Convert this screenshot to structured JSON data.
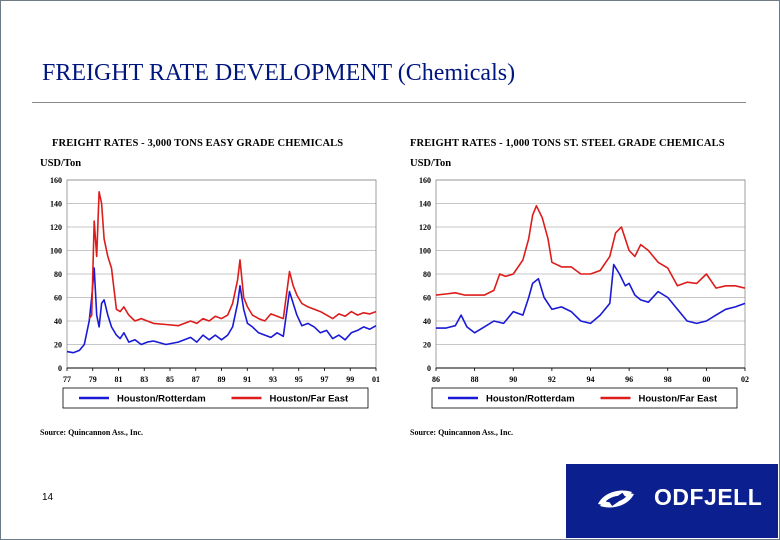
{
  "slide": {
    "title": "FREIGHT RATE DEVELOPMENT (Chemicals)",
    "page_number": "14"
  },
  "logo": {
    "text": "ODFJELL",
    "icon": "odfjell-swirl-icon"
  },
  "colors": {
    "series_blue": "#1a1ad6",
    "series_red": "#dd1c1c",
    "title": "#00167f",
    "logo_bg": "#0c1f8f"
  },
  "chart_data": [
    {
      "type": "line",
      "title": "FREIGHT RATES - 3,000 TONS EASY GRADE CHEMICALS",
      "ylabel": "USD/Ton",
      "ylim": [
        0,
        160
      ],
      "yticks": [
        "0",
        "20",
        "40",
        "60",
        "80",
        "100",
        "120",
        "140",
        "160"
      ],
      "xlim": [
        1977,
        2002
      ],
      "xticks": [
        "77",
        "79",
        "81",
        "83",
        "85",
        "87",
        "89",
        "91",
        "93",
        "95",
        "97",
        "99",
        "01"
      ],
      "grid": true,
      "legend_position": "bottom",
      "source": "Source: Quincannon Ass., Inc.",
      "series": [
        {
          "name": "Houston/Rotterdam",
          "x": [
            1977.0,
            1977.5,
            1978.0,
            1978.4,
            1978.8,
            1979.0,
            1979.2,
            1979.4,
            1979.6,
            1979.8,
            1980.0,
            1980.3,
            1980.6,
            1981.0,
            1981.3,
            1981.6,
            1982.0,
            1982.5,
            1983.0,
            1983.5,
            1984.0,
            1985.0,
            1986.0,
            1987.0,
            1987.5,
            1988.0,
            1988.5,
            1989.0,
            1989.5,
            1990.0,
            1990.4,
            1990.8,
            1991.0,
            1991.3,
            1991.6,
            1992.0,
            1992.5,
            1993.0,
            1993.5,
            1994.0,
            1994.5,
            1995.0,
            1995.3,
            1995.6,
            1996.0,
            1996.5,
            1997.0,
            1997.5,
            1998.0,
            1998.5,
            1999.0,
            1999.5,
            2000.0,
            2000.5,
            2001.0,
            2001.5,
            2002.0
          ],
          "values": [
            14,
            13,
            15,
            20,
            40,
            60,
            85,
            45,
            35,
            55,
            58,
            45,
            35,
            28,
            25,
            30,
            22,
            24,
            20,
            22,
            23,
            20,
            22,
            26,
            22,
            28,
            24,
            28,
            24,
            28,
            35,
            55,
            70,
            50,
            38,
            35,
            30,
            28,
            26,
            30,
            27,
            65,
            55,
            45,
            36,
            38,
            35,
            30,
            32,
            25,
            28,
            24,
            30,
            32,
            35,
            33,
            36
          ]
        },
        {
          "name": "Houston/Far East",
          "x": [
            1978.8,
            1979.0,
            1979.2,
            1979.4,
            1979.6,
            1979.8,
            1980.0,
            1980.3,
            1980.6,
            1981.0,
            1981.3,
            1981.6,
            1982.0,
            1982.5,
            1983.0,
            1983.5,
            1984.0,
            1985.0,
            1986.0,
            1987.0,
            1987.5,
            1988.0,
            1988.5,
            1989.0,
            1989.5,
            1990.0,
            1990.4,
            1990.8,
            1991.0,
            1991.3,
            1991.6,
            1992.0,
            1992.5,
            1993.0,
            1993.5,
            1994.0,
            1994.5,
            1995.0,
            1995.3,
            1995.6,
            1996.0,
            1996.5,
            1997.0,
            1997.5,
            1998.0,
            1998.5,
            1999.0,
            1999.5,
            2000.0,
            2000.5,
            2001.0,
            2001.5,
            2002.0
          ],
          "values": [
            42,
            45,
            125,
            95,
            150,
            140,
            110,
            95,
            85,
            50,
            48,
            52,
            45,
            40,
            42,
            40,
            38,
            37,
            36,
            40,
            38,
            42,
            40,
            44,
            42,
            45,
            55,
            75,
            92,
            60,
            52,
            45,
            42,
            40,
            46,
            44,
            42,
            82,
            70,
            62,
            55,
            52,
            50,
            48,
            45,
            42,
            46,
            44,
            48,
            45,
            47,
            46,
            48
          ]
        }
      ]
    },
    {
      "type": "line",
      "title": "FREIGHT RATES - 1,000 TONS ST. STEEL GRADE CHEMICALS",
      "ylabel": "USD/Ton",
      "ylim": [
        0,
        160
      ],
      "yticks": [
        "0",
        "20",
        "40",
        "60",
        "80",
        "100",
        "120",
        "140",
        "160"
      ],
      "xlim": [
        1986,
        2002
      ],
      "xticks": [
        "86",
        "88",
        "90",
        "92",
        "94",
        "96",
        "98",
        "00",
        "02"
      ],
      "grid": true,
      "legend_position": "bottom",
      "source": "Source: Quincannon Ass., Inc.",
      "series": [
        {
          "name": "Houston/Rotterdam",
          "x": [
            1986.0,
            1986.5,
            1987.0,
            1987.3,
            1987.6,
            1988.0,
            1988.5,
            1989.0,
            1989.5,
            1990.0,
            1990.5,
            1990.8,
            1991.0,
            1991.3,
            1991.6,
            1992.0,
            1992.5,
            1993.0,
            1993.5,
            1994.0,
            1994.5,
            1995.0,
            1995.2,
            1995.5,
            1995.8,
            1996.0,
            1996.3,
            1996.6,
            1997.0,
            1997.5,
            1998.0,
            1998.5,
            1999.0,
            1999.5,
            2000.0,
            2000.5,
            2001.0,
            2001.5,
            2002.0
          ],
          "values": [
            34,
            34,
            36,
            45,
            35,
            30,
            35,
            40,
            38,
            48,
            45,
            60,
            72,
            76,
            60,
            50,
            52,
            48,
            40,
            38,
            45,
            55,
            88,
            80,
            70,
            72,
            62,
            58,
            56,
            65,
            60,
            50,
            40,
            38,
            40,
            45,
            50,
            52,
            55
          ]
        },
        {
          "name": "Houston/Far East",
          "x": [
            1986.0,
            1986.5,
            1987.0,
            1987.5,
            1988.0,
            1988.5,
            1989.0,
            1989.3,
            1989.6,
            1990.0,
            1990.5,
            1990.8,
            1991.0,
            1991.2,
            1991.5,
            1991.8,
            1992.0,
            1992.5,
            1993.0,
            1993.5,
            1994.0,
            1994.5,
            1995.0,
            1995.3,
            1995.6,
            1996.0,
            1996.3,
            1996.6,
            1997.0,
            1997.5,
            1998.0,
            1998.5,
            1999.0,
            1999.5,
            2000.0,
            2000.5,
            2001.0,
            2001.5,
            2002.0
          ],
          "values": [
            62,
            63,
            64,
            62,
            62,
            62,
            66,
            80,
            78,
            80,
            92,
            110,
            130,
            138,
            128,
            110,
            90,
            86,
            86,
            80,
            80,
            83,
            95,
            115,
            120,
            100,
            95,
            105,
            100,
            90,
            85,
            70,
            73,
            72,
            80,
            68,
            70,
            70,
            68
          ]
        }
      ]
    }
  ]
}
